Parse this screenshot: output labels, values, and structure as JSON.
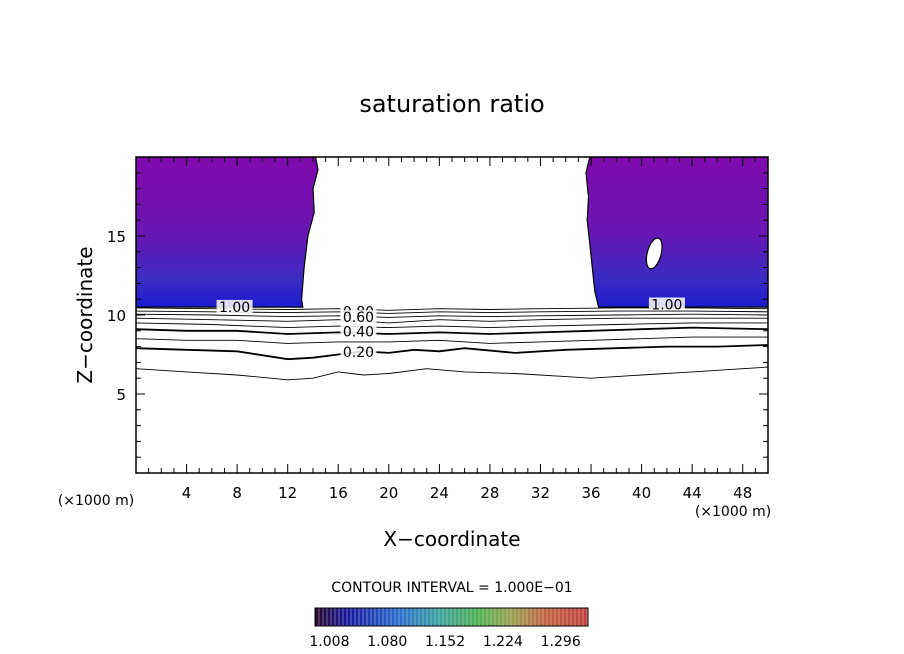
{
  "chart_data": {
    "type": "contour",
    "title": "saturation ratio",
    "xlabel": "X−coordinate",
    "ylabel": "Z−coordinate",
    "x_unit": "(×1000 m)",
    "y_unit": "(×1000 m)",
    "xlim": [
      0,
      50
    ],
    "ylim": [
      0,
      20
    ],
    "x_ticks": [
      4,
      8,
      12,
      16,
      20,
      24,
      28,
      32,
      36,
      40,
      44,
      48
    ],
    "y_ticks": [
      5,
      10,
      15
    ],
    "contour_interval_text": "CONTOUR INTERVAL = 1.000E−01",
    "contour_labels": [
      {
        "text": "1.00",
        "x": 7.8,
        "z": 10.45
      },
      {
        "text": "1.00",
        "x": 42.0,
        "z": 10.6
      },
      {
        "text": "0.80",
        "x": 17.6,
        "z": 10.15
      },
      {
        "text": "0.60",
        "x": 17.6,
        "z": 9.8
      },
      {
        "text": "0.40",
        "x": 17.6,
        "z": 8.9
      },
      {
        "text": "0.20",
        "x": 17.6,
        "z": 7.6
      }
    ],
    "contour_lines": [
      {
        "level": 0.1,
        "points": [
          [
            0,
            6.6
          ],
          [
            4,
            6.4
          ],
          [
            8,
            6.2
          ],
          [
            12,
            5.9
          ],
          [
            14,
            6.0
          ],
          [
            16,
            6.4
          ],
          [
            18,
            6.2
          ],
          [
            20,
            6.3
          ],
          [
            23,
            6.6
          ],
          [
            26,
            6.4
          ],
          [
            30,
            6.3
          ],
          [
            34,
            6.1
          ],
          [
            36,
            6.0
          ],
          [
            40,
            6.2
          ],
          [
            44,
            6.4
          ],
          [
            48,
            6.6
          ],
          [
            50,
            6.7
          ]
        ]
      },
      {
        "level": 0.2,
        "points": [
          [
            0,
            7.9
          ],
          [
            4,
            7.8
          ],
          [
            8,
            7.7
          ],
          [
            12,
            7.2
          ],
          [
            14,
            7.3
          ],
          [
            16,
            7.5
          ],
          [
            18,
            7.7
          ],
          [
            20,
            7.6
          ],
          [
            22,
            7.8
          ],
          [
            24,
            7.7
          ],
          [
            26,
            7.9
          ],
          [
            30,
            7.6
          ],
          [
            34,
            7.8
          ],
          [
            38,
            7.9
          ],
          [
            42,
            8.0
          ],
          [
            46,
            8.0
          ],
          [
            50,
            8.1
          ]
        ]
      },
      {
        "level": 0.3,
        "points": [
          [
            0,
            8.5
          ],
          [
            4,
            8.4
          ],
          [
            8,
            8.4
          ],
          [
            12,
            8.2
          ],
          [
            16,
            8.3
          ],
          [
            20,
            8.3
          ],
          [
            24,
            8.4
          ],
          [
            28,
            8.2
          ],
          [
            32,
            8.3
          ],
          [
            36,
            8.4
          ],
          [
            40,
            8.5
          ],
          [
            44,
            8.6
          ],
          [
            50,
            8.6
          ]
        ]
      },
      {
        "level": 0.4,
        "points": [
          [
            0,
            9.1
          ],
          [
            4,
            9.0
          ],
          [
            8,
            9.0
          ],
          [
            12,
            8.8
          ],
          [
            16,
            8.9
          ],
          [
            20,
            8.8
          ],
          [
            24,
            8.9
          ],
          [
            28,
            8.8
          ],
          [
            32,
            8.9
          ],
          [
            36,
            9.0
          ],
          [
            40,
            9.1
          ],
          [
            44,
            9.2
          ],
          [
            50,
            9.1
          ]
        ]
      },
      {
        "level": 0.5,
        "points": [
          [
            0,
            9.5
          ],
          [
            6,
            9.4
          ],
          [
            12,
            9.2
          ],
          [
            16,
            9.3
          ],
          [
            20,
            9.2
          ],
          [
            24,
            9.3
          ],
          [
            28,
            9.2
          ],
          [
            32,
            9.3
          ],
          [
            38,
            9.4
          ],
          [
            44,
            9.5
          ],
          [
            50,
            9.5
          ]
        ]
      },
      {
        "level": 0.6,
        "points": [
          [
            0,
            9.8
          ],
          [
            6,
            9.7
          ],
          [
            12,
            9.6
          ],
          [
            16,
            9.7
          ],
          [
            20,
            9.5
          ],
          [
            24,
            9.7
          ],
          [
            28,
            9.6
          ],
          [
            32,
            9.7
          ],
          [
            38,
            9.8
          ],
          [
            44,
            9.8
          ],
          [
            50,
            9.8
          ]
        ]
      },
      {
        "level": 0.7,
        "points": [
          [
            0,
            10.05
          ],
          [
            6,
            10.0
          ],
          [
            12,
            9.9
          ],
          [
            16,
            9.95
          ],
          [
            20,
            9.85
          ],
          [
            24,
            9.95
          ],
          [
            28,
            9.9
          ],
          [
            32,
            9.95
          ],
          [
            38,
            10.0
          ],
          [
            44,
            10.05
          ],
          [
            50,
            10.0
          ]
        ]
      },
      {
        "level": 0.8,
        "points": [
          [
            0,
            10.25
          ],
          [
            6,
            10.2
          ],
          [
            12,
            10.15
          ],
          [
            16,
            10.2
          ],
          [
            20,
            10.1
          ],
          [
            24,
            10.2
          ],
          [
            28,
            10.15
          ],
          [
            32,
            10.2
          ],
          [
            38,
            10.25
          ],
          [
            44,
            10.25
          ],
          [
            50,
            10.2
          ]
        ]
      },
      {
        "level": 0.9,
        "points": [
          [
            0,
            10.45
          ],
          [
            6,
            10.4
          ],
          [
            12,
            10.35
          ],
          [
            16,
            10.4
          ],
          [
            20,
            10.3
          ],
          [
            24,
            10.4
          ],
          [
            28,
            10.35
          ],
          [
            32,
            10.4
          ],
          [
            38,
            10.45
          ],
          [
            44,
            10.45
          ],
          [
            50,
            10.4
          ]
        ]
      }
    ],
    "filled_regions": [
      {
        "name": "left",
        "shape": [
          [
            0,
            20
          ],
          [
            14.2,
            20
          ],
          [
            14.4,
            19.2
          ],
          [
            14.0,
            18.0
          ],
          [
            14.1,
            16.5
          ],
          [
            13.6,
            15.0
          ],
          [
            13.3,
            13.0
          ],
          [
            13.1,
            11.0
          ],
          [
            13.2,
            10.5
          ],
          [
            0,
            10.5
          ]
        ]
      },
      {
        "name": "right",
        "shape": [
          [
            35.9,
            20
          ],
          [
            50,
            20
          ],
          [
            50,
            10.5
          ],
          [
            36.6,
            10.5
          ],
          [
            36.3,
            11.5
          ],
          [
            36.1,
            13.0
          ],
          [
            35.9,
            14.5
          ],
          [
            35.7,
            16.0
          ],
          [
            35.8,
            17.5
          ],
          [
            35.6,
            19.0
          ]
        ]
      }
    ],
    "hole": {
      "x": 41.0,
      "z": 13.9,
      "rx": 0.55,
      "rz": 1.0
    },
    "colorbar": {
      "ticks": [
        "1.008",
        "1.080",
        "1.152",
        "1.224",
        "1.296"
      ],
      "range": [
        0.99,
        1.33
      ]
    }
  }
}
